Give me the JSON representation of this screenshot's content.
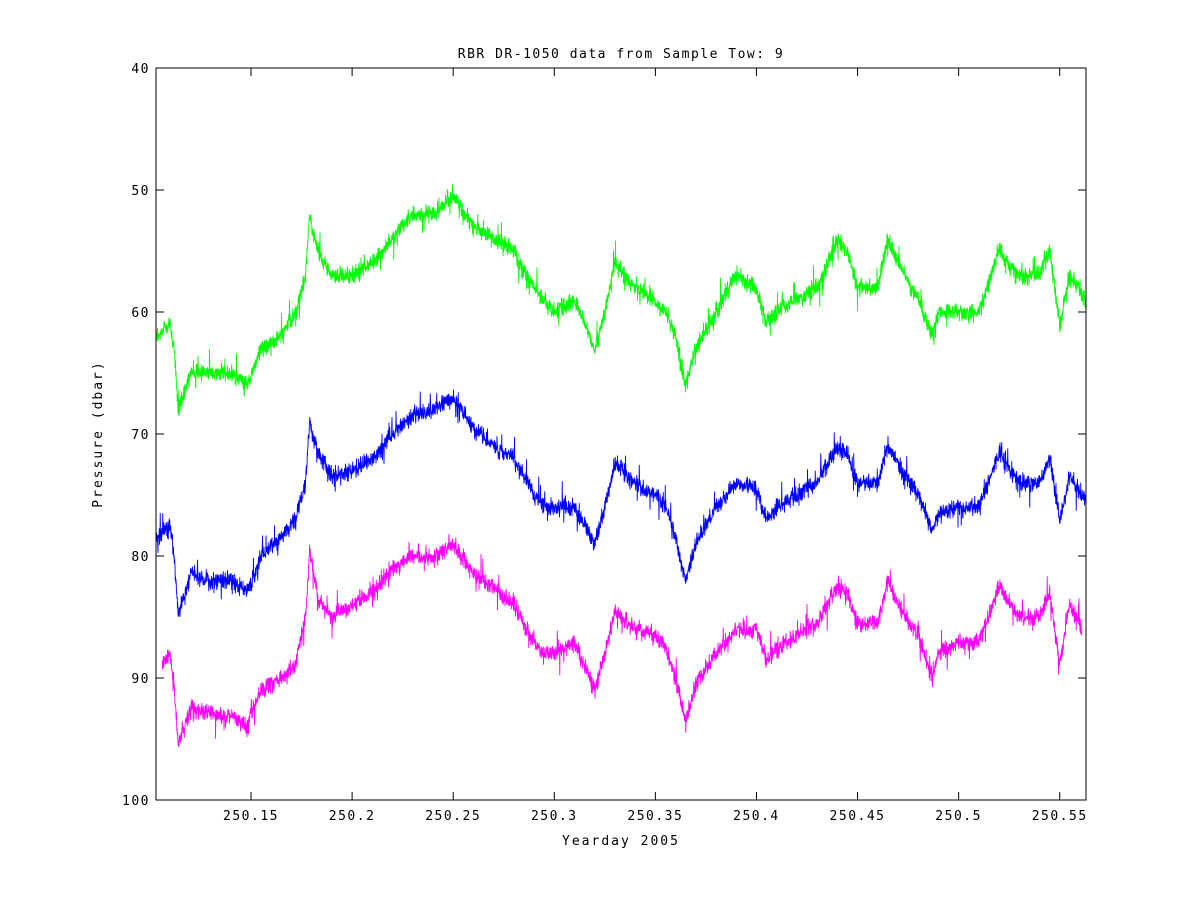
{
  "chart_data": {
    "type": "line",
    "title": "RBR DR-1050 data from Sample Tow: 9",
    "xlabel": "Yearday 2005",
    "ylabel": "Pressure (dbar)",
    "xlim": [
      250.103,
      250.563
    ],
    "ylim": [
      100,
      40
    ],
    "y_reversed": true,
    "grid": false,
    "xticks": [
      250.15,
      250.2,
      250.25,
      250.3,
      250.35,
      250.4,
      250.45,
      250.5,
      250.55
    ],
    "xtick_labels": [
      "250.15",
      "250.2",
      "250.25",
      "250.3",
      "250.35",
      "250.4",
      "250.45",
      "250.5",
      "250.55"
    ],
    "yticks": [
      40,
      50,
      60,
      70,
      80,
      90,
      100
    ],
    "ytick_labels": [
      "40",
      "50",
      "60",
      "70",
      "80",
      "90",
      "100"
    ],
    "noise_amplitude_dbar": 2.2,
    "series": [
      {
        "color": "#00ff00",
        "x": [
          250.103,
          250.11,
          250.112,
          250.114,
          250.12,
          250.13,
          250.14,
          250.148,
          250.155,
          250.165,
          250.172,
          250.177,
          250.179,
          250.183,
          250.19,
          250.2,
          250.21,
          250.22,
          250.23,
          250.24,
          250.25,
          250.26,
          250.27,
          250.28,
          250.29,
          250.295,
          250.3,
          250.31,
          250.315,
          250.32,
          250.325,
          250.33,
          250.34,
          250.35,
          250.355,
          250.36,
          250.365,
          250.37,
          250.38,
          250.39,
          250.4,
          250.405,
          250.41,
          250.42,
          250.43,
          250.44,
          250.445,
          250.45,
          250.46,
          250.465,
          250.47,
          250.48,
          250.487,
          250.49,
          250.5,
          250.51,
          250.52,
          250.53,
          250.54,
          250.545,
          250.55,
          250.555,
          250.563
        ],
        "y": [
          62,
          61,
          63,
          68,
          65,
          65,
          65,
          66,
          63,
          62,
          60,
          57,
          52,
          55,
          57,
          57,
          56,
          54,
          52,
          52,
          50.5,
          53,
          54,
          55,
          58,
          59,
          60,
          59,
          61,
          63,
          60,
          56,
          58,
          59,
          60,
          62,
          66,
          63,
          60,
          57,
          58,
          61,
          60,
          59,
          58,
          54,
          55,
          58,
          58,
          54,
          56,
          59,
          62,
          60,
          60,
          60,
          55,
          57,
          57,
          55,
          61,
          57,
          59
        ]
      },
      {
        "color": "#0000ff",
        "x": [
          250.103,
          250.11,
          250.112,
          250.114,
          250.12,
          250.13,
          250.14,
          250.148,
          250.155,
          250.165,
          250.172,
          250.177,
          250.179,
          250.183,
          250.19,
          250.2,
          250.21,
          250.22,
          250.23,
          250.24,
          250.25,
          250.26,
          250.27,
          250.28,
          250.29,
          250.295,
          250.3,
          250.31,
          250.315,
          250.32,
          250.325,
          250.33,
          250.34,
          250.35,
          250.355,
          250.36,
          250.365,
          250.37,
          250.38,
          250.39,
          250.4,
          250.405,
          250.41,
          250.42,
          250.43,
          250.44,
          250.445,
          250.45,
          250.46,
          250.465,
          250.47,
          250.48,
          250.487,
          250.49,
          250.5,
          250.51,
          250.52,
          250.53,
          250.54,
          250.545,
          250.55,
          250.555,
          250.563
        ],
        "y": [
          78.5,
          77.5,
          80,
          85,
          81.5,
          82,
          82,
          83,
          80,
          78.5,
          77,
          74,
          69,
          71.5,
          73.5,
          73,
          72,
          70,
          68.5,
          68,
          67,
          69.5,
          71,
          72,
          75,
          76,
          76,
          76,
          77.5,
          79,
          76,
          72.5,
          74,
          75,
          76,
          78.5,
          82,
          79,
          76,
          74,
          74.5,
          77,
          76,
          75,
          74,
          71,
          71.5,
          74,
          74,
          71,
          72.5,
          75,
          78,
          76.5,
          76,
          76,
          71.5,
          74,
          74,
          72,
          77,
          73.5,
          75.5
        ]
      },
      {
        "color": "#ff00ff",
        "x": [
          250.106,
          250.11,
          250.112,
          250.114,
          250.12,
          250.13,
          250.14,
          250.148,
          250.155,
          250.165,
          250.172,
          250.177,
          250.179,
          250.183,
          250.19,
          250.2,
          250.21,
          250.22,
          250.23,
          250.24,
          250.25,
          250.26,
          250.27,
          250.28,
          250.29,
          250.295,
          250.3,
          250.31,
          250.315,
          250.32,
          250.325,
          250.33,
          250.34,
          250.35,
          250.355,
          250.36,
          250.365,
          250.37,
          250.38,
          250.39,
          250.4,
          250.405,
          250.41,
          250.42,
          250.43,
          250.44,
          250.445,
          250.45,
          250.46,
          250.465,
          250.47,
          250.48,
          250.487,
          250.49,
          250.5,
          250.51,
          250.52,
          250.53,
          250.54,
          250.545,
          250.55,
          250.555,
          250.561
        ],
        "y": [
          89,
          88,
          91,
          95.5,
          92.5,
          93,
          93,
          94,
          91,
          90,
          89,
          85,
          79.5,
          83.5,
          85,
          84,
          83,
          81,
          80,
          80,
          79,
          81.5,
          82.5,
          84,
          87,
          88,
          88,
          87,
          89,
          91,
          88,
          84.5,
          86,
          86.5,
          87.5,
          90,
          93.5,
          90.5,
          88,
          86,
          86,
          88.5,
          87.5,
          86.5,
          85.5,
          82.5,
          83,
          85.5,
          85.5,
          82,
          84,
          86.5,
          90,
          88,
          87,
          87,
          82.5,
          85,
          85,
          83,
          89,
          84,
          86
        ]
      }
    ]
  }
}
